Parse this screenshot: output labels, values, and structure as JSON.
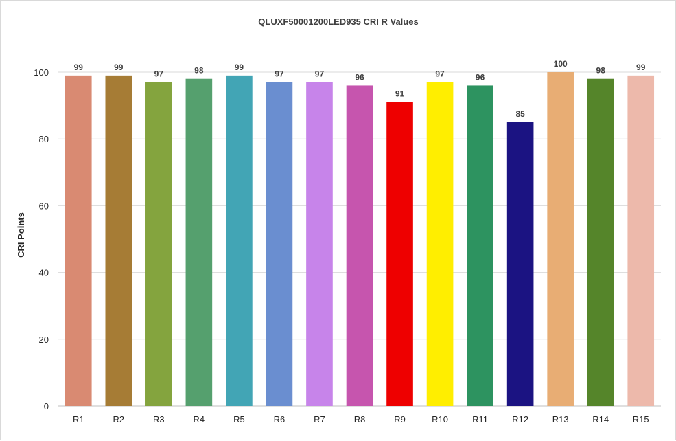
{
  "chart_data": {
    "type": "bar",
    "title": "QLUXF50001200LED935 CRI R Values",
    "xlabel": "",
    "ylabel": "CRI Points",
    "categories": [
      "R1",
      "R2",
      "R3",
      "R4",
      "R5",
      "R6",
      "R7",
      "R8",
      "R9",
      "R10",
      "R11",
      "R12",
      "R13",
      "R14",
      "R15"
    ],
    "values": [
      99,
      99,
      97,
      98,
      99,
      97,
      97,
      96,
      91,
      97,
      96,
      85,
      100,
      98,
      99
    ],
    "colors": [
      "#d98a72",
      "#a67c35",
      "#84a43e",
      "#55a06e",
      "#42a5b5",
      "#6a8ed0",
      "#c784ea",
      "#c655ae",
      "#ee0000",
      "#ffee00",
      "#2d9360",
      "#1b1382",
      "#e8ad74",
      "#55852a",
      "#edb9ab"
    ],
    "ylim": [
      0,
      100
    ],
    "yticks": [
      0,
      20,
      40,
      60,
      80,
      100
    ],
    "grid": true,
    "legend": "none"
  }
}
